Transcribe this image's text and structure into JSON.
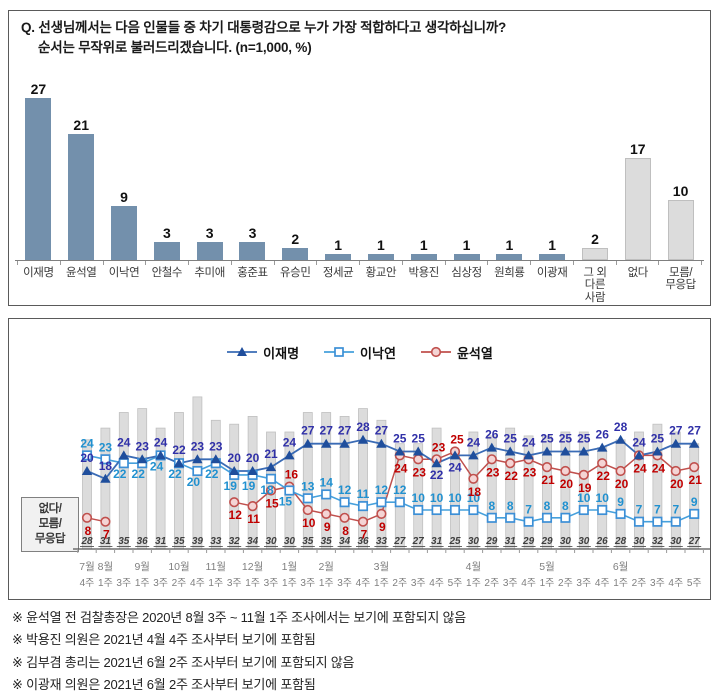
{
  "footnotes": [
    "※ 윤석열 전 검찰총장은 2020년 8월 3주 ~ 11월 1주 조사에서는 보기에 포함되지 않음",
    "※ 박용진 의원은 2021년 4월 4주 조사부터 보기에 포함됨",
    "※ 김부겸 총리는 2021년 6월 2주 조사부터 보기에 포함되지 않음",
    "※ 이광재 의원은 2021년 6월 2주 조사부터 보기에 포함됨"
  ],
  "chart_data": [
    {
      "type": "bar",
      "title_lines": [
        "Q. 선생님께서는 다음 인물들 중 차기 대통령감으로 누가 가장 적합하다고 생각하십니까?",
        "순서는 무작위로 불러드리겠습니다. (n=1,000, %)"
      ],
      "categories": [
        [
          "이재명"
        ],
        [
          "윤석열"
        ],
        [
          "이낙연"
        ],
        [
          "안철수"
        ],
        [
          "추미애"
        ],
        [
          "홍준표"
        ],
        [
          "유승민"
        ],
        [
          "정세균"
        ],
        [
          "황교안"
        ],
        [
          "박용진"
        ],
        [
          "심상정"
        ],
        [
          "원희룡"
        ],
        [
          "이광재"
        ],
        [
          "그 외",
          "다른",
          "사람"
        ],
        [
          "없다"
        ],
        [
          "모름/",
          "무응답"
        ]
      ],
      "values": [
        27,
        21,
        9,
        3,
        3,
        3,
        2,
        1,
        1,
        1,
        1,
        1,
        1,
        2,
        17,
        10
      ],
      "bar_styles": [
        "blue",
        "blue",
        "blue",
        "blue",
        "blue",
        "blue",
        "blue",
        "blue",
        "blue",
        "blue",
        "blue",
        "blue",
        "blue",
        "gray",
        "gray",
        "gray"
      ],
      "colors": {
        "blue": "#7390AC",
        "gray": "#DCDCDC",
        "gray_border": "#BFBFBF"
      },
      "ylim": [
        0,
        30
      ]
    },
    {
      "type": "line",
      "x_weeks": [
        "4주",
        "1주",
        "3주",
        "1주",
        "3주",
        "2주",
        "4주",
        "1주",
        "3주",
        "1주",
        "3주",
        "1주",
        "3주",
        "1주",
        "3주",
        "4주",
        "1주",
        "2주",
        "3주",
        "4주",
        "5주",
        "1주",
        "2주",
        "3주",
        "4주",
        "1주",
        "2주",
        "3주",
        "4주",
        "1주",
        "2주",
        "3주",
        "4주",
        "5주"
      ],
      "x_months": [
        {
          "index": 0,
          "label": "7월"
        },
        {
          "index": 1,
          "label": "8월"
        },
        {
          "index": 3,
          "label": "9월"
        },
        {
          "index": 5,
          "label": "10월"
        },
        {
          "index": 7,
          "label": "11월"
        },
        {
          "index": 9,
          "label": "12월"
        },
        {
          "index": 11,
          "label": "1월"
        },
        {
          "index": 13,
          "label": "2월"
        },
        {
          "index": 16,
          "label": "3월"
        },
        {
          "index": 21,
          "label": "4월"
        },
        {
          "index": 25,
          "label": "5월"
        },
        {
          "index": 29,
          "label": "6월"
        }
      ],
      "series": [
        {
          "name": "이재명",
          "marker": "triangle",
          "color": "#3A6BB5",
          "marker_color": "#1F4E9C",
          "label_color": "#3030A8",
          "values": [
            20,
            18,
            24,
            23,
            24,
            22,
            23,
            23,
            20,
            20,
            21,
            24,
            27,
            27,
            27,
            28,
            27,
            25,
            25,
            22,
            24,
            24,
            26,
            25,
            24,
            25,
            25,
            25,
            26,
            28,
            24,
            25,
            27,
            27
          ]
        },
        {
          "name": "이낙연",
          "marker": "square",
          "color": "#45A0DC",
          "marker_color": "#3C8FD6",
          "label_color": "#2191D0",
          "values": [
            24,
            23,
            22,
            22,
            24,
            22,
            20,
            22,
            19,
            19,
            18,
            15,
            13,
            14,
            12,
            11,
            12,
            12,
            10,
            10,
            10,
            10,
            8,
            8,
            7,
            8,
            8,
            10,
            10,
            9,
            7,
            7,
            7,
            9
          ]
        },
        {
          "name": "윤석열",
          "marker": "circle",
          "color": "#C0504D",
          "marker_color": "#C0504D",
          "label_color": "#C00000",
          "values": [
            8,
            7,
            null,
            null,
            null,
            null,
            null,
            null,
            12,
            11,
            15,
            16,
            10,
            9,
            8,
            7,
            9,
            24,
            23,
            23,
            25,
            18,
            23,
            22,
            23,
            21,
            20,
            19,
            22,
            20,
            24,
            24,
            20,
            21
          ]
        }
      ],
      "bar_series": {
        "label_lines": [
          "없다/",
          "모름/",
          "무응답"
        ],
        "values": [
          28,
          31,
          35,
          36,
          31,
          35,
          39,
          33,
          32,
          34,
          30,
          30,
          35,
          35,
          34,
          36,
          33,
          27,
          27,
          31,
          25,
          30,
          29,
          31,
          29,
          29,
          30,
          30,
          26,
          28,
          30,
          32,
          30,
          27
        ],
        "color": "#DCDCDC",
        "border_color": "#C0C0C0"
      },
      "ylim": [
        0,
        42
      ],
      "legend_position": "top",
      "grid": false
    }
  ]
}
